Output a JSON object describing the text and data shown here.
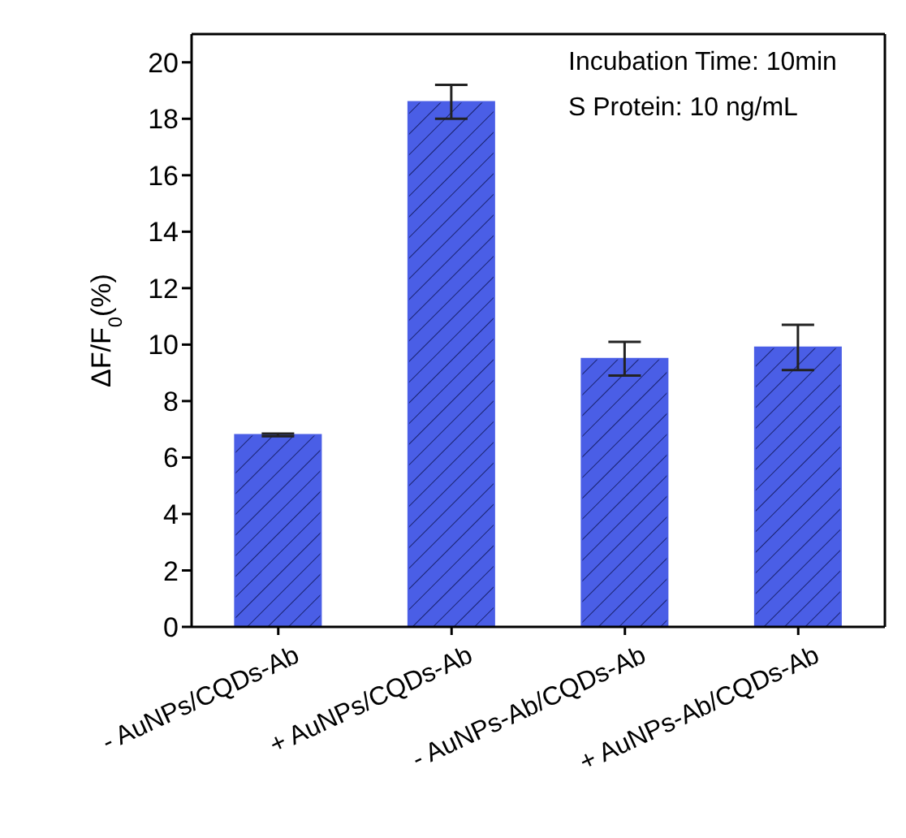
{
  "chart_data": {
    "type": "bar",
    "ylabel": "ΔF/F$_{0}$(%)",
    "annotations": [
      "Incubation Time: 10min",
      "S Protein: 10 ng/mL"
    ],
    "categories": [
      "- AuNPs/CQDs-Ab",
      "+ AuNPs/CQDs-Ab",
      "- AuNPs-Ab/CQDs-Ab",
      "+ AuNPs-Ab/CQDs-Ab"
    ],
    "values": [
      6.8,
      18.6,
      9.5,
      9.9
    ],
    "errors": [
      0.05,
      0.6,
      0.6,
      0.8
    ],
    "color": "#4a5ee6",
    "ylim": [
      0,
      21
    ],
    "yticks": [
      0,
      2,
      4,
      6,
      8,
      10,
      12,
      14,
      16,
      18,
      20
    ],
    "grid": false,
    "legend": false
  }
}
